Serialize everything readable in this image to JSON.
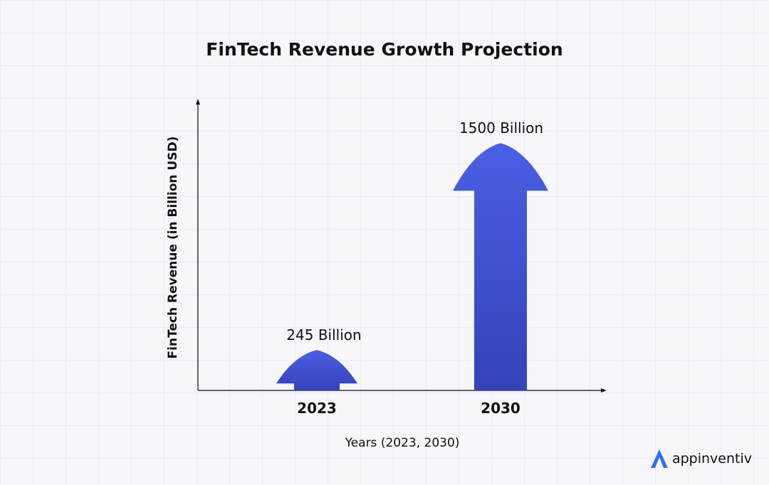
{
  "chart_data": {
    "type": "bar",
    "title": "FinTech Revenue Growth Projection",
    "xlabel": "Years (2023, 2030)",
    "ylabel": "FinTech Revenue (in Billion USD)",
    "categories": [
      "2023",
      "2030"
    ],
    "values": [
      245,
      1500
    ],
    "data_labels": [
      "245 Billion",
      "1500 Billion"
    ],
    "ylim": [
      0,
      1600
    ],
    "grid": false,
    "bar_color_top": "#4b5fe4",
    "bar_color_bottom": "#3443b8"
  },
  "brand": {
    "name": "appinventiv",
    "color": "#2f6df6"
  }
}
